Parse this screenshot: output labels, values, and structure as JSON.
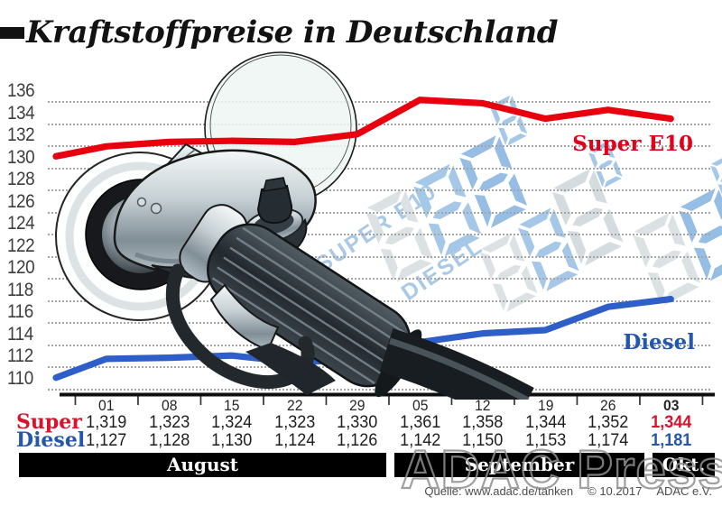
{
  "title": "Kraftstoffpreise in Deutschland",
  "watermark": "ADAC Presse",
  "source": {
    "quelle": "Quelle: www.adac.de/tanken",
    "copyright": "© 10.2017",
    "org": "ADAC e.V."
  },
  "series_labels": {
    "super": "Super E10",
    "diesel": "Diesel"
  },
  "pump_display": {
    "super_label": "SUPER E10",
    "diesel_label": "DIESEL"
  },
  "chart_data": {
    "type": "line",
    "title": "Kraftstoffpreise in Deutschland",
    "x": [
      "01",
      "08",
      "15",
      "22",
      "29",
      "05",
      "12",
      "19",
      "26",
      "03"
    ],
    "x_months": [
      "August",
      "August",
      "August",
      "August",
      "August",
      "September",
      "September",
      "September",
      "September",
      "Okt."
    ],
    "ylim": [
      110,
      136
    ],
    "ytick_step": 2,
    "grid": "dotted horizontal",
    "legend": "inline labels at right of lines",
    "series": [
      {
        "name": "Super E10",
        "color": "#e8000f",
        "lead_in": 131.0,
        "values": [
          131.9,
          132.3,
          132.4,
          132.3,
          133.0,
          136.1,
          135.8,
          134.4,
          135.2,
          134.4
        ]
      },
      {
        "name": "Diesel",
        "color": "#2e5ec8",
        "lead_in": 111.0,
        "values": [
          112.7,
          112.8,
          113.0,
          112.4,
          112.6,
          114.2,
          115.0,
          115.3,
          117.4,
          118.1
        ]
      }
    ]
  },
  "table": {
    "dates": [
      "01",
      "08",
      "15",
      "22",
      "29",
      "05",
      "12",
      "19",
      "26",
      "03"
    ],
    "rows": [
      {
        "label": "Super",
        "color": "#d6152c",
        "values": [
          "1,319",
          "1,323",
          "1,324",
          "1,323",
          "1,330",
          "1,361",
          "1,358",
          "1,344",
          "1,352",
          "1,344"
        ]
      },
      {
        "label": "Diesel",
        "color": "#2456ae",
        "values": [
          "1,127",
          "1,128",
          "1,130",
          "1,124",
          "1,126",
          "1,142",
          "1,150",
          "1,153",
          "1,174",
          "1,181"
        ]
      }
    ],
    "months": [
      {
        "label": "August",
        "span": 5
      },
      {
        "label": "September",
        "span": 4
      },
      {
        "label": "Okt.",
        "span": 1
      }
    ]
  }
}
